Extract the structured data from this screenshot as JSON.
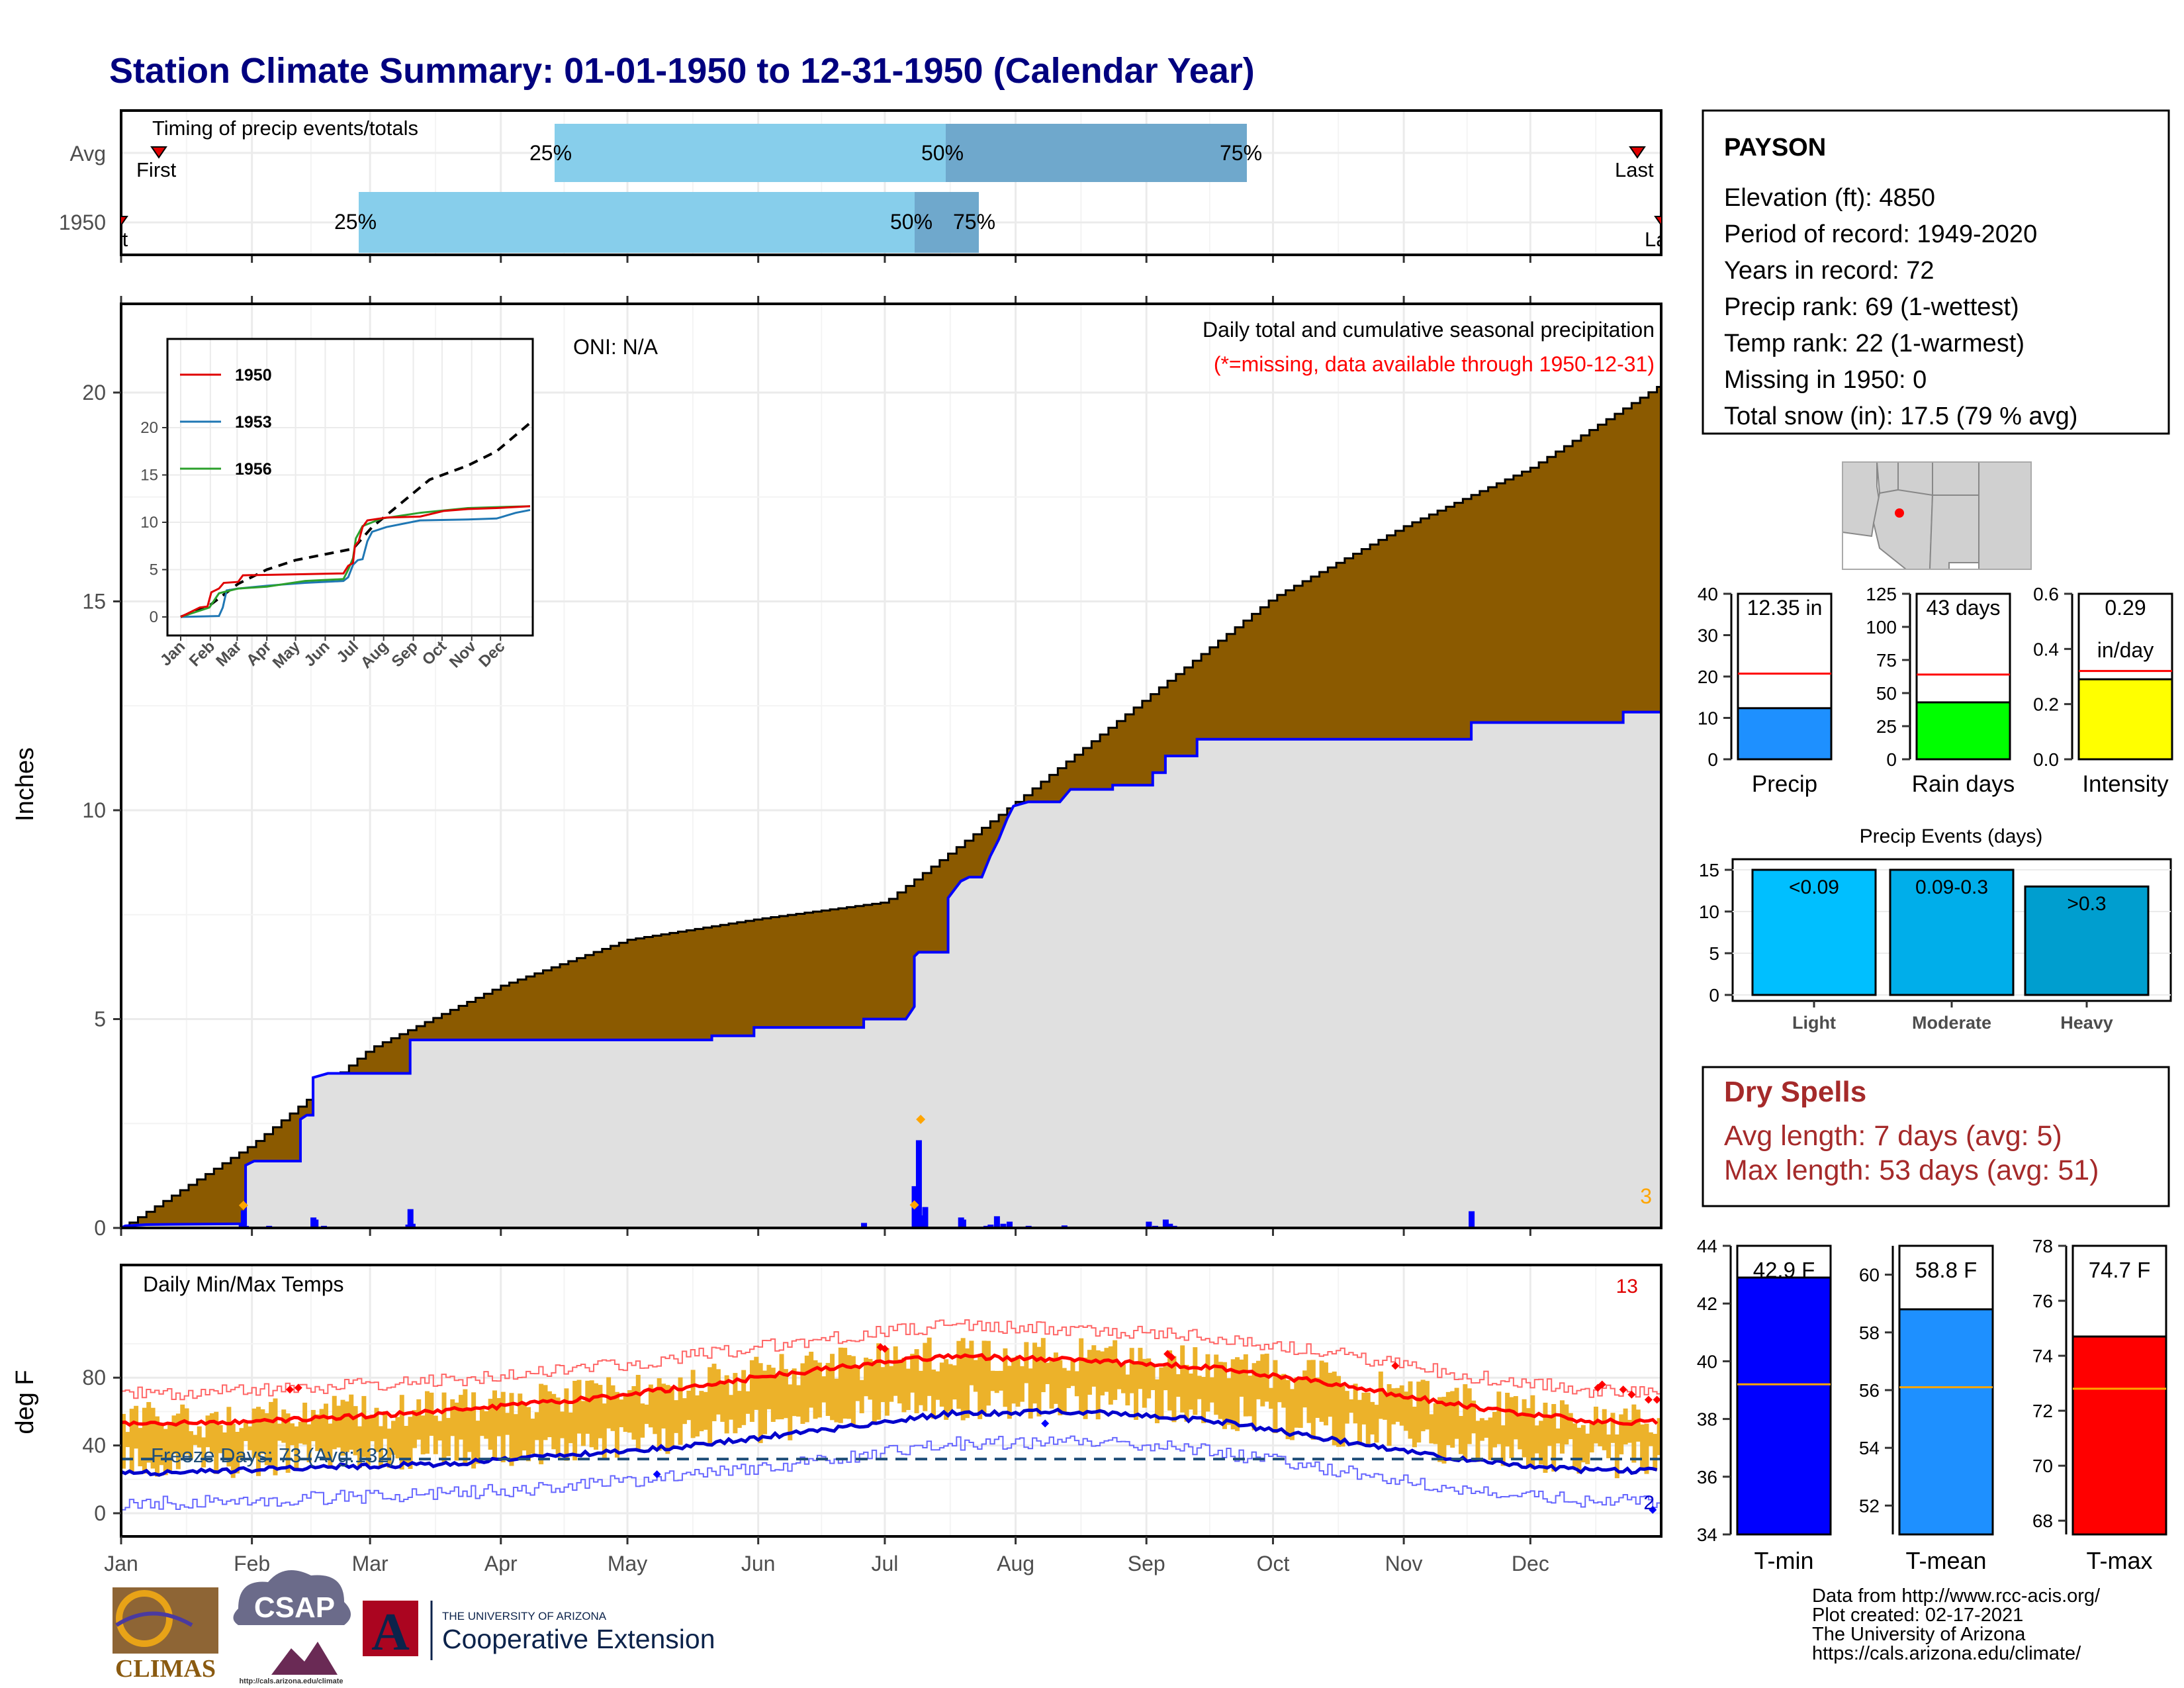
{
  "title": "Station Climate Summary: 01-01-1950 to 12-31-1950 (Calendar Year)",
  "colors": {
    "title": "#00007f",
    "cum_fill": "#8b5a00",
    "avg_fill": "#e0e0e0",
    "avg_line": "#0000ff",
    "pct_light": "#87ceeb",
    "pct_dark": "#6fa8cc",
    "bar_orange": "#ecb22a",
    "red": "#ff0000",
    "blue": "#0000cc",
    "dry": "#a52a2a",
    "precip_bar": "#1e90ff",
    "rain_bar": "#00ff00",
    "intensity_bar": "#ffff00",
    "ev_light": "#00bfff",
    "ev_mod": "#00aeea",
    "ev_heavy": "#009ecf",
    "tmin": "#0000ff",
    "tmean": "#1e90ff",
    "tmax": "#ff0000"
  },
  "timing": {
    "label": "Timing of precip events/totals",
    "rows": [
      "Avg",
      "1950"
    ],
    "avg": {
      "first_label": "First",
      "last_label": "Last",
      "p25": "25%",
      "p50": "50%",
      "p75": "75%"
    },
    "y1950": {
      "first_label": "First",
      "last_label": "Last",
      "p25": "25%",
      "p50": "50%",
      "p75": "75%"
    }
  },
  "precip_panel": {
    "ylabel": "Inches",
    "yticks": [
      "0",
      "5",
      "10",
      "15",
      "20"
    ],
    "oni": "ONI: N/A",
    "header": "Daily total and cumulative seasonal precipitation",
    "missing_note": "(*=missing, data available through 1950-12-31)",
    "count_label": "3"
  },
  "inset": {
    "yticks": [
      "0",
      "5",
      "10",
      "15",
      "20"
    ],
    "months": [
      "Jan",
      "Feb",
      "Mar",
      "Apr",
      "May",
      "Jun",
      "Jul",
      "Aug",
      "Sep",
      "Oct",
      "Nov",
      "Dec"
    ],
    "legend": [
      "1950",
      "1953",
      "1956"
    ]
  },
  "temp_panel": {
    "ylabel": "deg F",
    "yticks": [
      "0",
      "40",
      "80"
    ],
    "title": "Daily Min/Max Temps",
    "freeze": "Freeze Days: 73 (Avg:132)",
    "count_high": "13",
    "count_low": "2"
  },
  "months": [
    "Jan",
    "Feb",
    "Mar",
    "Apr",
    "May",
    "Jun",
    "Jul",
    "Aug",
    "Sep",
    "Oct",
    "Nov",
    "Dec"
  ],
  "station": {
    "name": "PAYSON",
    "lines": [
      "Elevation (ft): 4850",
      "Period of record: 1949-2020",
      "Years in record: 72",
      "Precip rank: 69 (1-wettest)",
      "Temp rank: 22 (1-warmest)",
      "Missing in 1950: 0",
      "Total snow (in): 17.5 (79 % avg)"
    ]
  },
  "mini_bars": [
    {
      "label": "Precip",
      "value_text": "12.35 in",
      "value_text2": "",
      "yticks": [
        "0",
        "10",
        "20",
        "30",
        "40"
      ],
      "ymax": 40,
      "value": 12.35,
      "avg": 20.7
    },
    {
      "label": "Rain days",
      "value_text": "43 days",
      "value_text2": "",
      "yticks": [
        "0",
        "25",
        "50",
        "75",
        "100",
        "125"
      ],
      "ymax": 125,
      "value": 43,
      "avg": 64
    },
    {
      "label": "Intensity",
      "value_text": "0.29",
      "value_text2": "in/day",
      "yticks": [
        "0.0",
        "0.2",
        "0.4",
        "0.6"
      ],
      "ymax": 0.6,
      "value": 0.29,
      "avg": 0.32
    }
  ],
  "precip_events": {
    "title": "Precip Events (days)",
    "yticks": [
      "0",
      "5",
      "10",
      "15"
    ],
    "ymax": 15,
    "bars": [
      {
        "cat": "Light",
        "inner": "<0.09",
        "value": 15
      },
      {
        "cat": "Moderate",
        "inner": "0.09-0.3",
        "value": 15
      },
      {
        "cat": "Heavy",
        "inner": ">0.3",
        "value": 13
      }
    ]
  },
  "dry_spells": {
    "title": "Dry Spells",
    "avg": "Avg length: 7 days (avg: 5)",
    "max": "Max length: 53 days (avg: 51)"
  },
  "temp_bars": [
    {
      "label": "T-min",
      "value_text": "42.9 F",
      "yticks": [
        "34",
        "36",
        "38",
        "40",
        "42",
        "44"
      ],
      "ymin": 34,
      "ymax": 44,
      "value": 42.9,
      "avg": 39.2
    },
    {
      "label": "T-mean",
      "value_text": "58.8 F",
      "yticks": [
        "52",
        "54",
        "56",
        "58",
        "60"
      ],
      "ymin": 51,
      "ymax": 61,
      "value": 58.8,
      "avg": 56.1
    },
    {
      "label": "T-max",
      "value_text": "74.7 F",
      "yticks": [
        "68",
        "70",
        "72",
        "74",
        "76",
        "78"
      ],
      "ymin": 67.5,
      "ymax": 78,
      "value": 74.7,
      "avg": 72.8
    }
  ],
  "footer": [
    "Data from http://www.rcc-acis.org/",
    "Plot created: 02-17-2021",
    "The University of Arizona",
    "https://cals.arizona.edu/climate/"
  ],
  "logos": {
    "climas": "CLIMAS",
    "csap": "CSAP",
    "csap_url": "http://cals.arizona.edu/climate",
    "ua_top": "THE UNIVERSITY OF ARIZONA",
    "ua_bottom": "Cooperative Extension",
    "ua_letter": "A"
  },
  "chart_data": [
    {
      "type": "area",
      "title": "Daily total and cumulative seasonal precipitation",
      "ylabel": "Inches",
      "ylim": [
        0,
        22
      ],
      "x": [
        "Jan",
        "Feb",
        "Mar",
        "Apr",
        "May",
        "Jun",
        "Jul",
        "Aug",
        "Sep",
        "Oct",
        "Nov",
        "Dec",
        "Dec-end"
      ],
      "series": [
        {
          "name": "cumulative average",
          "values": [
            0,
            2.0,
            4.3,
            5.8,
            6.9,
            7.4,
            7.8,
            10.2,
            12.7,
            15.1,
            16.8,
            18.2,
            20.2
          ]
        },
        {
          "name": "1950",
          "values": [
            0,
            1.6,
            3.7,
            4.5,
            4.5,
            4.6,
            7.8,
            10.2,
            10.6,
            11.7,
            11.7,
            12.1,
            12.35
          ]
        }
      ]
    },
    {
      "type": "line",
      "title": "Daily Min/Max Temps",
      "ylabel": "deg F",
      "x": [
        "Jan",
        "Feb",
        "Mar",
        "Apr",
        "May",
        "Jun",
        "Jul",
        "Aug",
        "Sep",
        "Oct",
        "Nov",
        "Dec"
      ],
      "series": [
        {
          "name": "avg max",
          "values": [
            53,
            56,
            60,
            66,
            75,
            85,
            93,
            90,
            86,
            76,
            63,
            54
          ]
        },
        {
          "name": "avg min",
          "values": [
            24,
            27,
            29,
            34,
            40,
            49,
            59,
            60,
            55,
            43,
            31,
            25
          ]
        }
      ],
      "freeze_line": 32
    },
    {
      "type": "bar",
      "title": "Precip Events (days)",
      "categories": [
        "Light",
        "Moderate",
        "Heavy"
      ],
      "values": [
        15,
        15,
        13
      ]
    }
  ]
}
